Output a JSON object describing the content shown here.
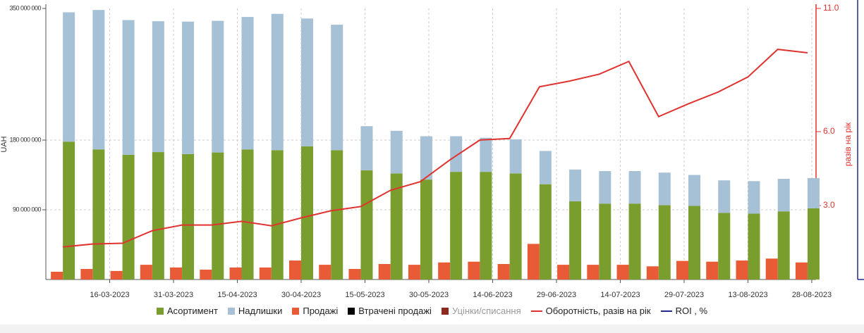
{
  "chart_data": {
    "type": "bar-line",
    "y_label": "UAH",
    "y2_label": "разів на рік",
    "x": [
      "05-03-2023",
      "12-03-2023",
      "19-03-2023",
      "26-03-2023",
      "02-04-2023",
      "09-04-2023",
      "16-04-2023",
      "23-04-2023",
      "30-04-2023",
      "07-05-2023",
      "14-05-2023",
      "21-05-2023",
      "28-05-2023",
      "04-06-2023",
      "11-06-2023",
      "18-06-2023",
      "25-06-2023",
      "02-07-2023",
      "09-07-2023",
      "16-07-2023",
      "23-07-2023",
      "30-07-2023",
      "06-08-2023",
      "13-08-2023",
      "20-08-2023",
      "27-08-2023"
    ],
    "xlim": [
      "01-03-2023",
      "29-08-2023"
    ],
    "xticks": [
      "16-03-2023",
      "31-03-2023",
      "15-04-2023",
      "30-04-2023",
      "15-05-2023",
      "30-05-2023",
      "14-06-2023",
      "29-06-2023",
      "14-07-2023",
      "29-07-2023",
      "13-08-2023",
      "28-08-2023"
    ],
    "ylim": [
      0,
      350000000
    ],
    "yticks": [
      {
        "value": 350000000,
        "label": "350 000 000"
      },
      {
        "value": 180000000,
        "label": "180 000 000"
      },
      {
        "value": 90000000,
        "label": "90 000 000"
      }
    ],
    "y2lim": [
      0,
      11
    ],
    "y2ticks": [
      {
        "value": 11,
        "label": "11.0"
      },
      {
        "value": 6,
        "label": "6.0"
      },
      {
        "value": 3,
        "label": "3.0"
      }
    ],
    "grid": true,
    "series": [
      {
        "name": "Асортимент",
        "type": "stacked-bar",
        "color": "#7a9e2e",
        "values": [
          178000000,
          168000000,
          161000000,
          164500000,
          162000000,
          164000000,
          168000000,
          167000000,
          172000000,
          167000000,
          141000000,
          137000000,
          129000000,
          139000000,
          139000000,
          137000000,
          123000000,
          101000000,
          98000000,
          98000000,
          96000000,
          95000000,
          86000000,
          85000000,
          88000000,
          92000000
        ]
      },
      {
        "name": "Надлишки",
        "type": "stacked-bar",
        "color": "#a6c0d6",
        "values": [
          167000000,
          180000000,
          174000000,
          169000000,
          171000000,
          170000000,
          171000000,
          176000000,
          165000000,
          162000000,
          57000000,
          55000000,
          56000000,
          46000000,
          44000000,
          44000000,
          43000000,
          41000000,
          42000000,
          42000000,
          42000000,
          40000000,
          42000000,
          42000000,
          42000000,
          39000000
        ]
      },
      {
        "name": "Продажі",
        "type": "bar",
        "color": "#e95b36",
        "values": [
          10000000,
          13600000,
          11000000,
          19000000,
          15500000,
          12700000,
          15500000,
          15500000,
          24500000,
          19000000,
          13600000,
          20000000,
          19000000,
          22000000,
          23000000,
          20000000,
          46000000,
          19000000,
          19000000,
          19000000,
          17000000,
          24000000,
          23000000,
          24500000,
          27000000,
          22000000
        ]
      },
      {
        "name": "Втрачені продажі",
        "type": "bar",
        "color": "#000000"
      },
      {
        "name": "Уцінки/списання",
        "type": "bar",
        "color": "#8b2a1c"
      },
      {
        "name": "Оборотність, разів на рік",
        "type": "line",
        "axis": "y2",
        "color": "#e0332f",
        "values": [
          1.32,
          1.44,
          1.47,
          1.98,
          2.21,
          2.21,
          2.36,
          2.18,
          2.5,
          2.79,
          2.96,
          3.62,
          3.97,
          4.86,
          5.66,
          5.72,
          7.82,
          8.05,
          8.33,
          8.85,
          6.61,
          7.13,
          7.61,
          8.22,
          9.34,
          9.2
        ]
      },
      {
        "name": "ROI , %",
        "type": "line",
        "axis": "y3",
        "color": "#1f2a8c"
      }
    ]
  }
}
